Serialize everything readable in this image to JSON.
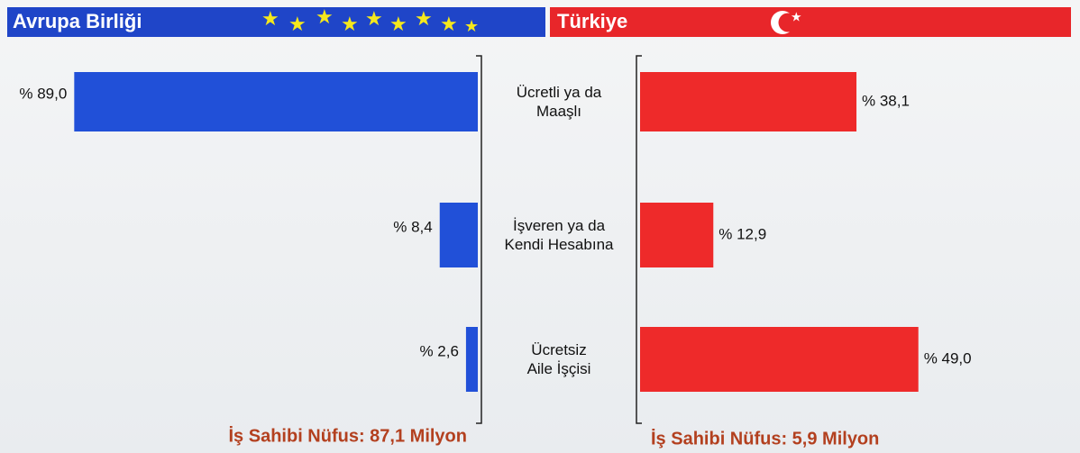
{
  "chart_data": {
    "type": "butterfly-bar",
    "categories": [
      "Ücretli ya da\nMaaşlı",
      "İşveren ya da\nKendi Hesabına",
      "Ücretsiz\nAile İşçisi"
    ],
    "series": [
      {
        "name": "Avrupa Birliği",
        "color": "#2150d8",
        "values": [
          89.0,
          8.4,
          2.6
        ],
        "value_labels": [
          "% 89,0",
          "% 8,4",
          "% 2,6"
        ],
        "note": "İş Sahibi Nüfus: 87,1 Milyon"
      },
      {
        "name": "Türkiye",
        "color": "#ee2a2a",
        "values": [
          38.1,
          12.9,
          49.0
        ],
        "value_labels": [
          "% 38,1",
          "% 12,9",
          "% 49,0"
        ],
        "note": "İş Sahibi Nüfus: 5,9 Milyon"
      }
    ]
  }
}
